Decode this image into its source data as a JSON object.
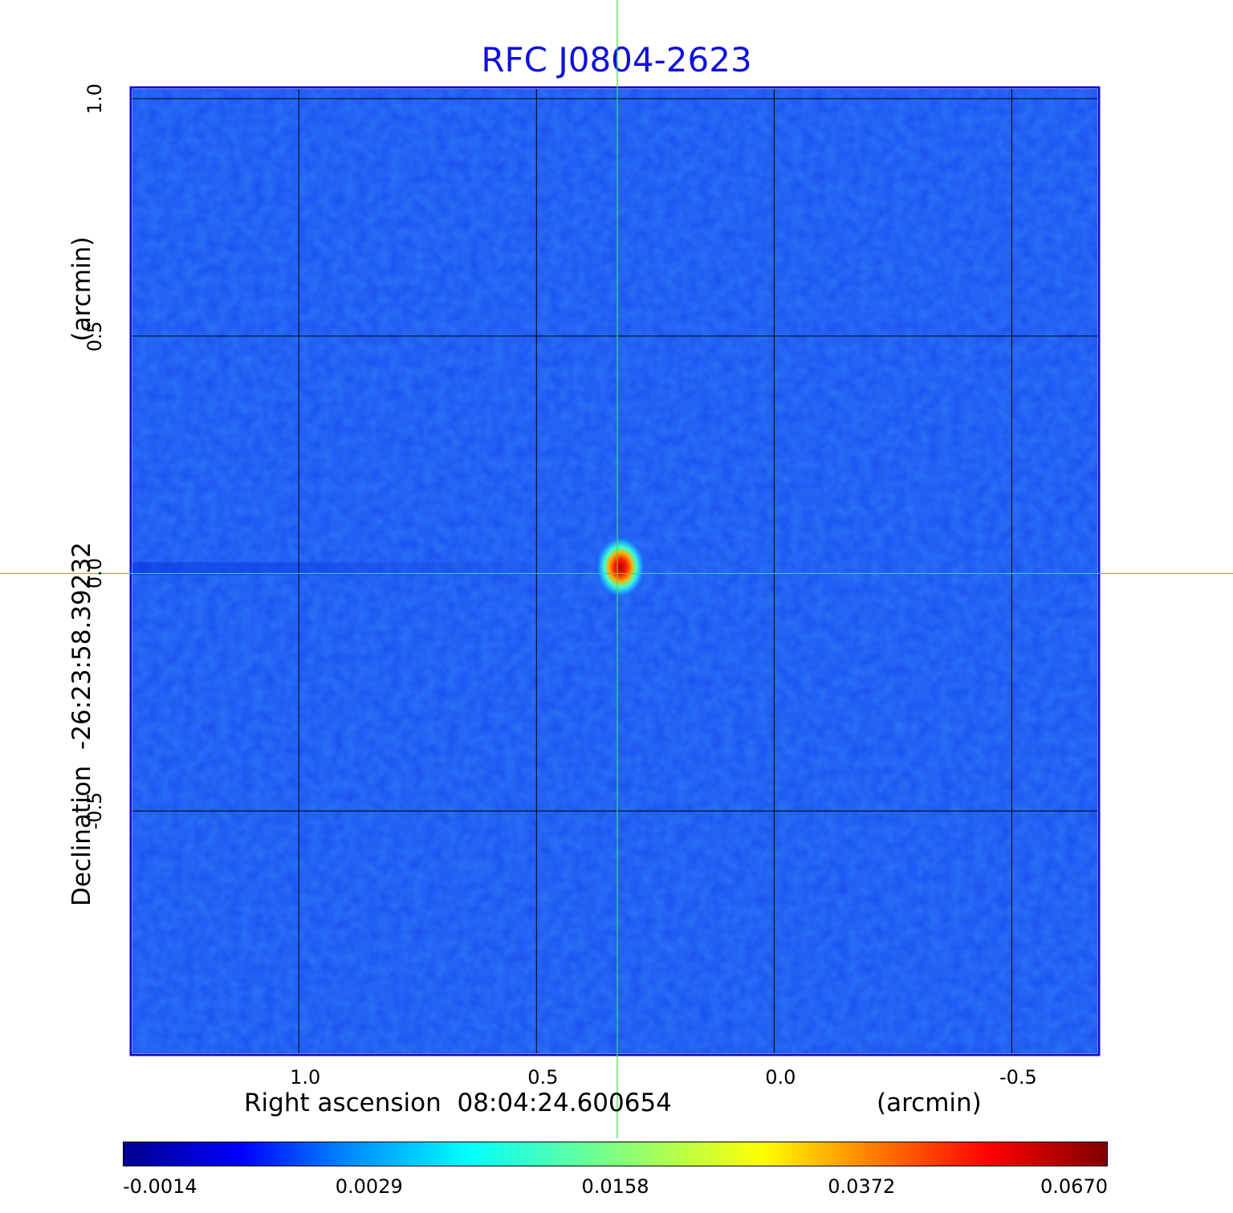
{
  "chart_data": {
    "type": "heatmap",
    "title": "RFC J0804-2623",
    "xlabel": "Right ascension  08:04:24.600654",
    "xunit": "(arcmin)",
    "ylabel": "Declination  -26:23:58.39232",
    "yunit": "(arcmin)",
    "x_ticks": [
      "1.0",
      "0.5",
      "0.0",
      "-0.5"
    ],
    "x_tick_values": [
      1.0,
      0.5,
      0.0,
      -0.5
    ],
    "y_ticks": [
      "1.0",
      "0.5",
      "0.0",
      "-0.5"
    ],
    "y_tick_values": [
      1.0,
      0.5,
      0.0,
      -0.5
    ],
    "xlim": [
      1.35,
      -0.68
    ],
    "ylim": [
      -1.01,
      1.02
    ],
    "grid": true,
    "crosshair": {
      "x": 0.33,
      "y": 0.0
    },
    "source": {
      "x": 0.33,
      "y": 0.0,
      "peak": 0.067
    },
    "colorbar": {
      "colormap": "jet",
      "tick_labels": [
        "-0.0014",
        "0.0029",
        "0.0158",
        "0.0372",
        "0.0670"
      ],
      "min": -0.0014,
      "max": 0.067
    }
  },
  "colors": {
    "title": "#1010d8",
    "background_field": "#1a4df0",
    "frame": "#0a0ad8",
    "grid": "#000000",
    "crosshair": "#3ee03e"
  }
}
